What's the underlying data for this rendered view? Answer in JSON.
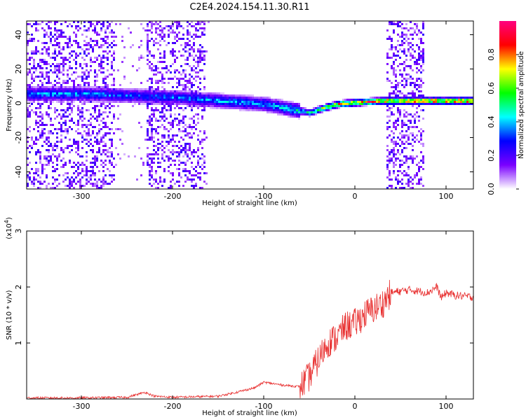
{
  "title": "C2E4.2024.154.11.30.R11",
  "chart_data": [
    {
      "type": "heatmap",
      "xlabel": "Height of straight line (km)",
      "ylabel": "Frequency (Hz)",
      "xlim": [
        -360,
        130
      ],
      "ylim": [
        -50,
        48
      ],
      "x_ticks": [
        -300,
        -200,
        -100,
        0,
        100
      ],
      "x_tick_labels": [
        "-300",
        "-200",
        "-100",
        "0",
        "100"
      ],
      "y_ticks": [
        -40,
        -20,
        0,
        20,
        40
      ],
      "y_tick_labels": [
        "-40",
        "-20",
        "0",
        "20",
        "40"
      ],
      "colorbar": {
        "label": "Normalized spectral amplitude",
        "range": [
          0,
          1
        ],
        "ticks": [
          0.0,
          0.2,
          0.4,
          0.6,
          0.8
        ],
        "tick_labels": [
          "0.0",
          "0.2",
          "0.4",
          "0.6",
          "0.8"
        ],
        "colors": [
          "#ffffff",
          "#7a00ff",
          "#0000ff",
          "#00ffff",
          "#00ff00",
          "#ffff00",
          "#ff0000",
          "#ff0080"
        ]
      },
      "ridge": {
        "x": [
          -360,
          -300,
          -250,
          -200,
          -150,
          -100,
          -80,
          -60,
          -50,
          -40,
          -20,
          0,
          30,
          40,
          75,
          100,
          130
        ],
        "frequency": [
          6,
          6,
          5,
          4,
          2,
          0,
          -2,
          -4,
          -5,
          -3,
          0,
          1,
          2,
          2,
          2,
          2,
          2
        ],
        "amplitude": [
          0.4,
          0.4,
          0.35,
          0.35,
          0.4,
          0.4,
          0.45,
          0.5,
          0.5,
          0.6,
          0.8,
          0.85,
          0.9,
          0.9,
          0.9,
          0.9,
          0.9
        ]
      },
      "noise_bands_x": [
        [
          -360,
          -265
        ],
        [
          -230,
          -165
        ],
        [
          33,
          75
        ]
      ]
    },
    {
      "type": "line",
      "xlabel": "Height of straight line (km)",
      "ylabel": "SNR (10 * v/v)",
      "y_scale_label": "(x10",
      "y_scale_exp": "4",
      "y_scale_close": ")",
      "xlim": [
        -360,
        130
      ],
      "ylim": [
        0,
        3
      ],
      "x_ticks": [
        -300,
        -200,
        -100,
        0,
        100
      ],
      "x_tick_labels": [
        "-300",
        "-200",
        "-100",
        "0",
        "100"
      ],
      "y_ticks": [
        1,
        2,
        3
      ],
      "y_tick_labels": [
        "1",
        "2",
        "3"
      ],
      "color": "#e83030",
      "series": [
        {
          "x": [
            -360,
            -300,
            -250,
            -230,
            -220,
            -200,
            -150,
            -130,
            -110,
            -100,
            -80,
            -60,
            -50,
            -40,
            -30,
            -20,
            -10,
            0,
            10,
            20,
            30,
            40,
            60,
            80,
            90,
            95,
            100,
            110,
            130
          ],
          "y": [
            0.02,
            0.02,
            0.03,
            0.12,
            0.05,
            0.03,
            0.05,
            0.12,
            0.2,
            0.3,
            0.25,
            0.22,
            0.4,
            0.7,
            1.0,
            1.1,
            1.3,
            1.35,
            1.5,
            1.6,
            1.7,
            1.9,
            1.95,
            1.9,
            2.0,
            1.8,
            1.9,
            1.85,
            1.82
          ]
        }
      ]
    }
  ]
}
